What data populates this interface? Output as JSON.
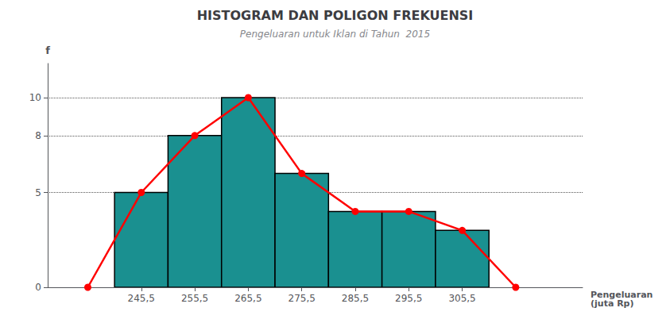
{
  "chart_data": {
    "type": "histogram",
    "title": "HISTOGRAM DAN POLIGON FREKUENSI",
    "subtitle": "Pengeluaran untuk Iklan di Tahun  2015",
    "xlabel": "Pengeluaran\n(juta Rp)",
    "ylabel": "f",
    "bins": [
      240.5,
      250.5,
      260.5,
      270.5,
      280.5,
      290.5,
      300.5,
      310.5
    ],
    "series": [
      {
        "type": "bar",
        "color": "#1a9090",
        "values": [
          5,
          8,
          10,
          6,
          4,
          4,
          3
        ]
      },
      {
        "type": "line",
        "color": "#ff0000",
        "marker": "circle",
        "x": [
          235.5,
          245.5,
          255.5,
          265.5,
          275.5,
          285.5,
          295.5,
          305.5,
          315.5
        ],
        "values": [
          0,
          5,
          8,
          10,
          6,
          4,
          4,
          3,
          0
        ]
      }
    ],
    "xlim": [
      228,
      328
    ],
    "xticks": [
      {
        "value": 245.5,
        "label": "245,5"
      },
      {
        "value": 255.5,
        "label": "255,5"
      },
      {
        "value": 265.5,
        "label": "265,5"
      },
      {
        "value": 275.5,
        "label": "275,5"
      },
      {
        "value": 285.5,
        "label": "285,5"
      },
      {
        "value": 295.5,
        "label": "295,5"
      },
      {
        "value": 305.5,
        "label": "305,5"
      }
    ],
    "ylim": [
      0,
      11.8
    ],
    "yticks": [
      0,
      5,
      8,
      10
    ],
    "grid": true
  }
}
